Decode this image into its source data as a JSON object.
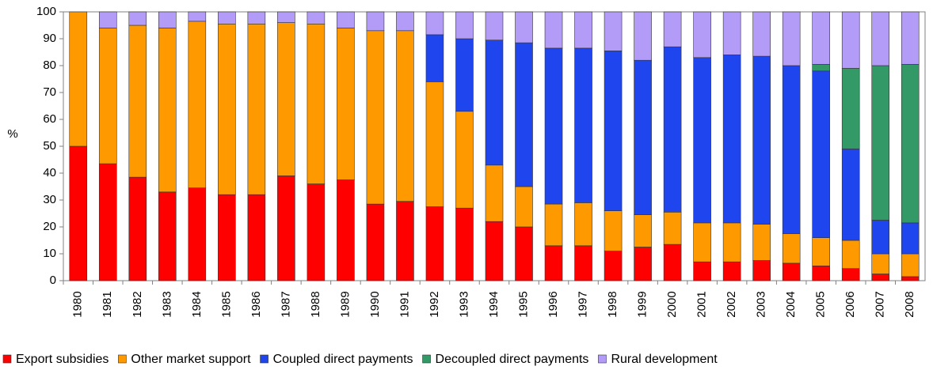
{
  "chart_data": {
    "type": "stacked_bar",
    "y_label": "%",
    "categories": [
      "1980",
      "1981",
      "1982",
      "1983",
      "1984",
      "1985",
      "1986",
      "1987",
      "1988",
      "1989",
      "1990",
      "1991",
      "1992",
      "1993",
      "1994",
      "1995",
      "1996",
      "1997",
      "1998",
      "1999",
      "2000",
      "2001",
      "2002",
      "2003",
      "2004",
      "2005",
      "2006",
      "2007",
      "2008"
    ],
    "series": [
      {
        "name": "Export subsidies",
        "color": "#ff0000",
        "values": [
          50,
          43.5,
          38.5,
          33,
          34.5,
          32,
          32,
          39,
          36,
          37.5,
          28.5,
          29.5,
          27.5,
          27,
          22,
          20,
          13,
          13,
          11,
          12.5,
          13.5,
          7,
          7,
          7.5,
          6.5,
          5.5,
          4.5,
          2.5,
          1.5
        ]
      },
      {
        "name": "Other market support",
        "color": "#ff9900",
        "values": [
          50,
          50.5,
          56.5,
          61,
          62,
          63.5,
          63.5,
          57,
          59.5,
          56.5,
          64.5,
          63.5,
          46.5,
          36,
          21,
          15,
          15.5,
          16,
          15,
          12,
          12,
          14.5,
          14.5,
          13.5,
          11,
          10.5,
          10.5,
          7.5,
          8.5
        ]
      },
      {
        "name": "Coupled direct payments",
        "color": "#1f45ee",
        "values": [
          0,
          0,
          0,
          0,
          0,
          0,
          0,
          0,
          0,
          0,
          0,
          0,
          17.5,
          27,
          46.5,
          53.5,
          58,
          57.5,
          59.5,
          57.5,
          61.5,
          61.5,
          62.5,
          62.5,
          62.5,
          62,
          34,
          12.5,
          11.5
        ]
      },
      {
        "name": "Decoupled direct payments",
        "color": "#339966",
        "values": [
          0,
          0,
          0,
          0,
          0,
          0,
          0,
          0,
          0,
          0,
          0,
          0,
          0,
          0,
          0,
          0,
          0,
          0,
          0,
          0,
          0,
          0,
          0,
          0,
          0,
          2.5,
          30,
          57.5,
          59
        ]
      },
      {
        "name": "Rural development",
        "color": "#b39cf7",
        "values": [
          0,
          6,
          5,
          6,
          3.5,
          4.5,
          4.5,
          4,
          4.5,
          6,
          7,
          7,
          8.5,
          10,
          10.5,
          11.5,
          13.5,
          13.5,
          14.5,
          18,
          13,
          17,
          16,
          16.5,
          20,
          19.5,
          21,
          20,
          19.5
        ]
      }
    ],
    "ylim": [
      0,
      100
    ],
    "yticks": [
      0,
      10,
      20,
      30,
      40,
      50,
      60,
      70,
      80,
      90,
      100
    ],
    "legend": "bottom"
  }
}
